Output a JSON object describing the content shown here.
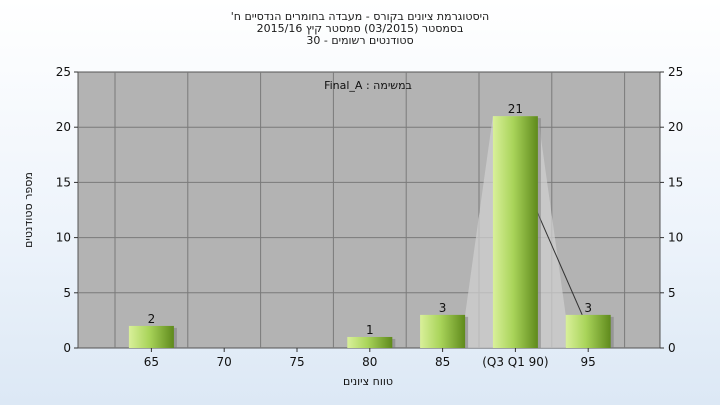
{
  "chart_data": {
    "type": "bar",
    "title_lines": [
      "היסטוגרמת ציונים בקורס - מעבדה בחומרים הנדסיים ח'",
      "בסמסטר  (03/2015)  סמסטר קיץ  2015/16",
      "סטודנטים רשומים - 30"
    ],
    "legend_text": "במשימה : Final_A",
    "ylabel": "מספר סטודנטים",
    "xlabel": "טווח ציונים",
    "categories": [
      "65",
      "70",
      "75",
      "80",
      "85",
      "(Q3 Q1 90)",
      "95"
    ],
    "values": [
      2,
      0,
      0,
      1,
      3,
      21,
      3
    ],
    "data_labels": [
      "2",
      "",
      "",
      "1",
      "3",
      "21",
      "3"
    ],
    "y_ticks": [
      0,
      5,
      10,
      15,
      20,
      25
    ],
    "ylim": [
      0,
      25
    ],
    "grid": true,
    "colors": {
      "plot_bg": "#b3b3b3",
      "bar_light": "#d9f09a",
      "bar_mid": "#a9d45a",
      "bar_dark": "#5f8a1c",
      "quartile_fill": "#cfcfcf"
    }
  }
}
